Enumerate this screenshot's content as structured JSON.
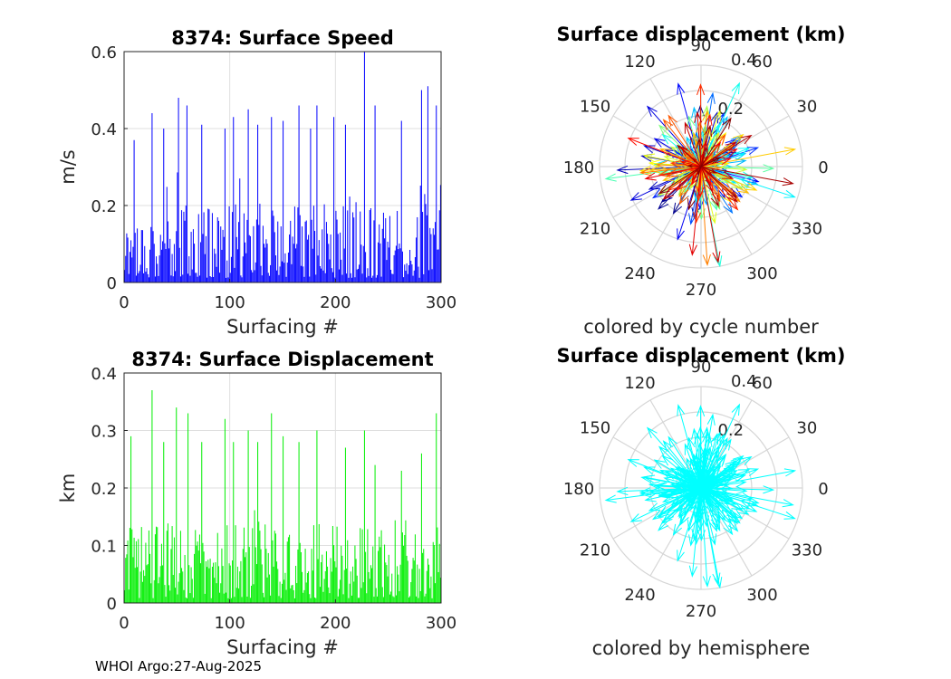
{
  "chart_data": [
    {
      "type": "bar",
      "title": "8374: Surface Speed",
      "xlabel": "Surfacing #",
      "ylabel": "m/s",
      "xlim": [
        0,
        300
      ],
      "ylim": [
        0,
        0.6
      ],
      "x_ticks": [
        "0",
        "100",
        "200",
        "300"
      ],
      "y_ticks": [
        "0",
        "0.2",
        "0.4",
        "0.6"
      ],
      "grid": true,
      "color": "#0000ff",
      "n_bars": 300,
      "seed": 17,
      "peaks": [
        [
          10,
          0.37
        ],
        [
          27,
          0.44
        ],
        [
          38,
          0.4
        ],
        [
          52,
          0.48
        ],
        [
          60,
          0.46
        ],
        [
          74,
          0.41
        ],
        [
          96,
          0.4
        ],
        [
          104,
          0.43
        ],
        [
          118,
          0.45
        ],
        [
          127,
          0.41
        ],
        [
          140,
          0.43
        ],
        [
          151,
          0.42
        ],
        [
          166,
          0.46
        ],
        [
          177,
          0.4
        ],
        [
          183,
          0.46
        ],
        [
          199,
          0.43
        ],
        [
          210,
          0.41
        ],
        [
          228,
          0.6
        ],
        [
          238,
          0.46
        ],
        [
          263,
          0.42
        ],
        [
          282,
          0.5
        ],
        [
          288,
          0.51
        ],
        [
          296,
          0.46
        ]
      ]
    },
    {
      "type": "bar",
      "title": "8374: Surface Displacement",
      "xlabel": "Surfacing #",
      "ylabel": "km",
      "xlim": [
        0,
        300
      ],
      "ylim": [
        0,
        0.4
      ],
      "x_ticks": [
        "0",
        "100",
        "200",
        "300"
      ],
      "y_ticks": [
        "0",
        "0.1",
        "0.2",
        "0.3",
        "0.4"
      ],
      "grid": true,
      "color": "#00ee00",
      "n_bars": 300,
      "seed": 29,
      "peaks": [
        [
          7,
          0.29
        ],
        [
          27,
          0.37
        ],
        [
          38,
          0.28
        ],
        [
          50,
          0.34
        ],
        [
          61,
          0.33
        ],
        [
          74,
          0.28
        ],
        [
          96,
          0.32
        ],
        [
          104,
          0.28
        ],
        [
          118,
          0.3
        ],
        [
          127,
          0.28
        ],
        [
          140,
          0.33
        ],
        [
          151,
          0.29
        ],
        [
          166,
          0.28
        ],
        [
          183,
          0.3
        ],
        [
          210,
          0.27
        ],
        [
          228,
          0.3
        ],
        [
          238,
          0.24
        ],
        [
          263,
          0.23
        ],
        [
          282,
          0.26
        ],
        [
          296,
          0.33
        ]
      ]
    },
    {
      "type": "polar",
      "title": "Surface displacement (km)",
      "caption": "colored by cycle number",
      "rmax": 0.4,
      "r_ticks": [
        "0.2",
        "0.4"
      ],
      "angle_ticks": [
        "0",
        "30",
        "60",
        "90",
        "120",
        "150",
        "180",
        "210",
        "240",
        "270",
        "300",
        "330"
      ],
      "color_mode": "cycle",
      "n_vectors": 300,
      "seed": 41
    },
    {
      "type": "polar",
      "title": "Surface displacement (km)",
      "caption": "colored by hemisphere",
      "rmax": 0.4,
      "r_ticks": [
        "0.2",
        "0.4"
      ],
      "angle_ticks": [
        "0",
        "30",
        "60",
        "90",
        "120",
        "150",
        "180",
        "210",
        "240",
        "270",
        "300",
        "330"
      ],
      "color_mode": "single",
      "color": "#00ffff",
      "n_vectors": 300,
      "seed": 41
    }
  ],
  "footer": "WHOI Argo:27-Aug-2025"
}
